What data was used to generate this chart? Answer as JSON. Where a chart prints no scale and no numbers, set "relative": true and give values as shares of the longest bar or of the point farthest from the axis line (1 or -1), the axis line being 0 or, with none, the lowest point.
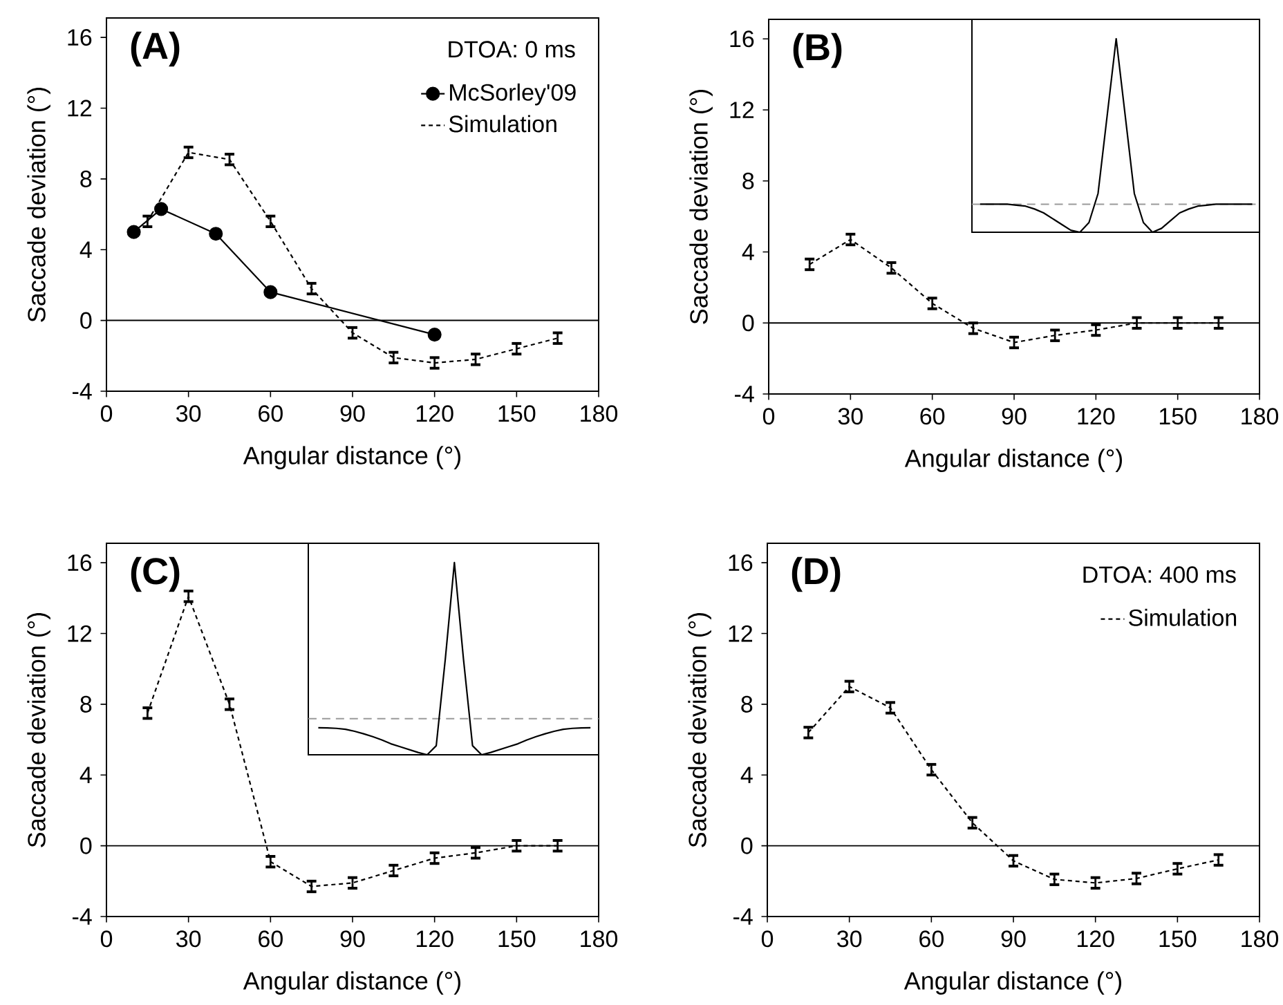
{
  "chart_data": [
    {
      "type": "line",
      "xlabel": "Angular distance (°)",
      "ylabel": "Saccade deviation (°)",
      "annotations": [
        "(A)",
        "DTOA: 0 ms"
      ],
      "xlim": [
        0,
        180
      ],
      "xticks": [
        0,
        30,
        60,
        90,
        120,
        150,
        180
      ],
      "ylim": [
        -4,
        17.1
      ],
      "yticks": [
        -4,
        0,
        4,
        8,
        12,
        16
      ],
      "legend": "top right",
      "ref_lines": [
        {
          "axis": "y",
          "value": 0,
          "color": "#000000"
        }
      ],
      "series": [
        {
          "name": "McSorley'09",
          "color": "#000000",
          "marker": "circle",
          "line_style": "solid",
          "x": [
            10,
            20,
            40,
            60,
            120
          ],
          "values": [
            5.0,
            6.3,
            4.9,
            1.6,
            -0.8
          ]
        },
        {
          "name": "Simulation",
          "color": "#000000",
          "marker": "none",
          "line_style": "dashed",
          "x": [
            15,
            30,
            45,
            60,
            75,
            90,
            105,
            120,
            135,
            150,
            165
          ],
          "values": [
            5.6,
            9.5,
            9.1,
            5.6,
            1.8,
            -0.7,
            -2.1,
            -2.4,
            -2.2,
            -1.6,
            -1.0
          ],
          "errors": [
            0.3,
            0.3,
            0.3,
            0.3,
            0.3,
            0.3,
            0.3,
            0.3,
            0.3,
            0.3,
            0.3
          ]
        }
      ]
    },
    {
      "type": "line",
      "xlabel": "Angular distance (°)",
      "ylabel": "Saccade deviation (°)",
      "annotations": [
        "(B)"
      ],
      "xlim": [
        0,
        180
      ],
      "xticks": [
        0,
        30,
        60,
        90,
        120,
        150,
        180
      ],
      "ylim": [
        -4,
        17.1
      ],
      "yticks": [
        -4,
        0,
        4,
        8,
        12,
        16
      ],
      "ref_lines": [
        {
          "axis": "y",
          "value": 0,
          "color": "#000000"
        }
      ],
      "series": [
        {
          "color": "#000000",
          "marker": "none",
          "line_style": "dashed",
          "x": [
            15,
            30,
            45,
            60,
            75,
            90,
            105,
            120,
            135,
            150,
            165
          ],
          "values": [
            3.3,
            4.7,
            3.1,
            1.1,
            -0.3,
            -1.1,
            -0.7,
            -0.4,
            0.0,
            0.0,
            0.0
          ],
          "errors": [
            0.3,
            0.3,
            0.3,
            0.3,
            0.3,
            0.3,
            0.3,
            0.3,
            0.3,
            0.3,
            0.3
          ]
        }
      ]
    },
    {
      "type": "line",
      "relative": true,
      "categories": [
        null,
        null,
        null,
        null,
        null,
        null,
        null,
        null,
        null,
        null,
        null,
        null,
        null,
        null,
        null,
        null,
        null,
        null,
        null,
        null,
        null,
        null,
        null,
        null,
        null,
        null,
        null,
        null,
        null,
        null,
        null
      ],
      "ref_lines": [
        {
          "axis": "y",
          "value": 0.145,
          "color": "#999999",
          "line_style": "dashed"
        }
      ],
      "series": [
        {
          "color": "#000000",
          "line_style": "solid",
          "values": [
            0.145,
            0.145,
            0.145,
            0.145,
            0.14,
            0.135,
            0.12,
            0.1,
            0.07,
            0.04,
            0.01,
            0.0,
            0.05,
            0.2,
            0.6,
            1.0,
            0.6,
            0.2,
            0.05,
            0.0,
            0.02,
            0.06,
            0.1,
            0.12,
            0.135,
            0.14,
            0.145,
            0.145,
            0.145,
            0.145,
            0.145
          ]
        }
      ]
    },
    {
      "type": "line",
      "xlabel": "Angular distance (°)",
      "ylabel": "Saccade deviation (°)",
      "annotations": [
        "(C)"
      ],
      "xlim": [
        0,
        180
      ],
      "xticks": [
        0,
        30,
        60,
        90,
        120,
        150,
        180
      ],
      "ylim": [
        -4,
        17.1
      ],
      "yticks": [
        -4,
        0,
        4,
        8,
        12,
        16
      ],
      "ref_lines": [
        {
          "axis": "y",
          "value": 0,
          "color": "#000000"
        }
      ],
      "series": [
        {
          "color": "#000000",
          "marker": "none",
          "line_style": "dashed",
          "x": [
            15,
            30,
            45,
            60,
            75,
            90,
            105,
            120,
            135,
            150,
            165
          ],
          "values": [
            7.5,
            14.1,
            8.0,
            -0.9,
            -2.3,
            -2.1,
            -1.4,
            -0.7,
            -0.4,
            0.0,
            0.0
          ],
          "errors": [
            0.3,
            0.3,
            0.3,
            0.3,
            0.3,
            0.3,
            0.3,
            0.3,
            0.3,
            0.3,
            0.3
          ]
        }
      ]
    },
    {
      "type": "line",
      "relative": true,
      "categories": [
        null,
        null,
        null,
        null,
        null,
        null,
        null,
        null,
        null,
        null,
        null,
        null,
        null,
        null,
        null,
        null,
        null,
        null,
        null,
        null,
        null,
        null,
        null,
        null,
        null,
        null,
        null,
        null,
        null,
        null,
        null
      ],
      "ref_lines": [
        {
          "axis": "y",
          "value": 0.19,
          "color": "#999999",
          "line_style": "dashed"
        }
      ],
      "series": [
        {
          "color": "#000000",
          "line_style": "solid",
          "values": [
            0.143,
            0.142,
            0.14,
            0.135,
            0.125,
            0.112,
            0.097,
            0.08,
            0.06,
            0.045,
            0.03,
            0.015,
            0.003,
            0.05,
            0.5,
            1.0,
            0.5,
            0.05,
            0.003,
            0.015,
            0.03,
            0.045,
            0.06,
            0.08,
            0.097,
            0.112,
            0.125,
            0.135,
            0.14,
            0.142,
            0.143
          ]
        }
      ]
    },
    {
      "type": "line",
      "xlabel": "Angular distance (°)",
      "ylabel": "Saccade deviation (°)",
      "annotations": [
        "(D)",
        "DTOA: 400 ms"
      ],
      "xlim": [
        0,
        180
      ],
      "xticks": [
        0,
        30,
        60,
        90,
        120,
        150,
        180
      ],
      "ylim": [
        -4,
        17.1
      ],
      "yticks": [
        -4,
        0,
        4,
        8,
        12,
        16
      ],
      "legend": "top right",
      "ref_lines": [
        {
          "axis": "y",
          "value": 0,
          "color": "#000000"
        }
      ],
      "series": [
        {
          "name": "Simulation",
          "color": "#000000",
          "marker": "none",
          "line_style": "dashed",
          "x": [
            15,
            30,
            45,
            60,
            75,
            90,
            105,
            120,
            135,
            150,
            165
          ],
          "values": [
            6.4,
            9.0,
            7.8,
            4.3,
            1.3,
            -0.85,
            -1.9,
            -2.1,
            -1.85,
            -1.3,
            -0.8
          ],
          "errors": [
            0.3,
            0.3,
            0.3,
            0.3,
            0.3,
            0.3,
            0.3,
            0.3,
            0.3,
            0.3,
            0.3
          ]
        }
      ]
    }
  ]
}
